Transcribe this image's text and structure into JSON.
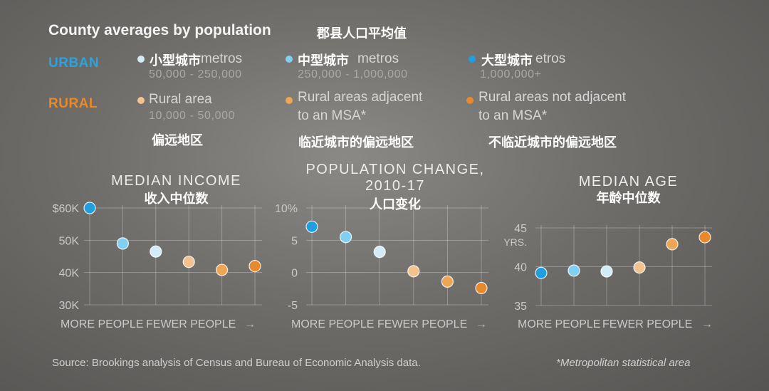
{
  "header": {
    "title": "County averages by population",
    "title_cn": "郡县人口平均值"
  },
  "legend": {
    "urban_label": "URBAN",
    "rural_label": "RURAL",
    "items": [
      {
        "key": "small_metro",
        "label": "metros",
        "overlay_cn": "小型城市",
        "sub": "50,000 - 250,000",
        "color": "#d2ecf7"
      },
      {
        "key": "mid_metro",
        "label": "metros",
        "overlay_cn": "中型城市",
        "sub": "250,000 - 1,000,000",
        "color": "#7fd0f2"
      },
      {
        "key": "large_metro",
        "label": "etros",
        "overlay_cn": "大型城市",
        "sub": "1,000,000+",
        "color": "#1f9ee0"
      },
      {
        "key": "rural_area",
        "label": "Rural area",
        "sub": "10,000 - 50,000",
        "cn": "偏远地区",
        "color": "#f2c28f"
      },
      {
        "key": "rural_adjacent",
        "label": "Rural areas adjacent",
        "label2": "to an MSA*",
        "cn": "临近城市的偏远地区",
        "color": "#efa654"
      },
      {
        "key": "rural_not_adjacent",
        "label": "Rural areas not adjacent",
        "label2": "to an MSA*",
        "cn": "不临近城市的偏远地区",
        "color": "#e88a2c"
      }
    ]
  },
  "axis_labels": {
    "more": "MORE PEOPLE",
    "fewer": "FEWER PEOPLE",
    "arrow": "→"
  },
  "chart_data": [
    {
      "type": "scatter",
      "title": "MEDIAN INCOME",
      "title_cn": "收入中位数",
      "categories": [
        "Large metros",
        "Mid metros",
        "Small metros",
        "Rural area",
        "Rural adjacent",
        "Rural not adjacent"
      ],
      "values": [
        60000,
        49000,
        46500,
        43300,
        40800,
        42000
      ],
      "colors": [
        "#1f9ee0",
        "#7fd0f2",
        "#d2ecf7",
        "#f2c28f",
        "#efa654",
        "#e88a2c"
      ],
      "ylim": [
        30000,
        60000
      ],
      "yticks": [
        {
          "value": 60000,
          "label": "$60K"
        },
        {
          "value": 50000,
          "label": "50K"
        },
        {
          "value": 40000,
          "label": "40K"
        },
        {
          "value": 30000,
          "label": "30K"
        }
      ],
      "grid": true
    },
    {
      "type": "scatter",
      "title": "POPULATION CHANGE,",
      "title2": "2010-17",
      "title_cn": "人口变化",
      "categories": [
        "Large metros",
        "Mid metros",
        "Small metros",
        "Rural area",
        "Rural adjacent",
        "Rural not adjacent"
      ],
      "values": [
        7.1,
        5.5,
        3.2,
        0.2,
        -1.4,
        -2.4
      ],
      "colors": [
        "#1f9ee0",
        "#7fd0f2",
        "#d2ecf7",
        "#f2c28f",
        "#efa654",
        "#e88a2c"
      ],
      "ylim": [
        -5,
        10
      ],
      "yticks": [
        {
          "value": 10,
          "label": "10%"
        },
        {
          "value": 5,
          "label": "5"
        },
        {
          "value": 0,
          "label": "0"
        },
        {
          "value": -5,
          "label": "-5"
        }
      ],
      "grid": true
    },
    {
      "type": "scatter",
      "title": "MEDIAN AGE",
      "title_cn": "年龄中位数",
      "categories": [
        "Large metros",
        "Mid metros",
        "Small metros",
        "Rural area",
        "Rural adjacent",
        "Rural not adjacent"
      ],
      "values": [
        39.2,
        39.5,
        39.4,
        39.9,
        42.9,
        43.8
      ],
      "colors": [
        "#1f9ee0",
        "#7fd0f2",
        "#d2ecf7",
        "#f2c28f",
        "#efa654",
        "#e88a2c"
      ],
      "ylim": [
        35,
        45
      ],
      "yticks": [
        {
          "value": 45,
          "label": "45"
        },
        {
          "value": 40,
          "label": "40"
        },
        {
          "value": 35,
          "label": "35"
        }
      ],
      "unit_label": "YRS.",
      "grid": true
    }
  ],
  "footer": {
    "source": "Source: Brookings analysis of Census and Bureau of Economic Analysis data.",
    "note": "*Metropolitan statistical area"
  }
}
